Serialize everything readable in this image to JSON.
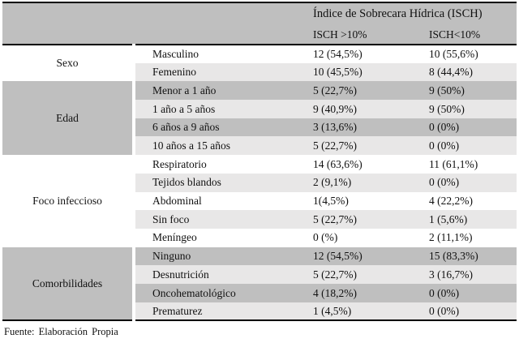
{
  "table": {
    "header": {
      "title": "Índice de Sobrecara Hídrica (ISCH)",
      "col_high": "ISCH >10%",
      "col_low": "ISCH<10%"
    },
    "groups": [
      {
        "label": "Sexo",
        "rows": [
          {
            "label": "Masculino",
            "v1": "12 (54,5%)",
            "v2": "10 (55,6%)"
          },
          {
            "label": "Femenino",
            "v1": "10 (45,5%)",
            "v2": "8 (44,4%)"
          }
        ]
      },
      {
        "label": "Edad",
        "rows": [
          {
            "label": "Menor a 1 año",
            "v1": "5 (22,7%)",
            "v2": "9 (50%)"
          },
          {
            "label": "1 año a 5 años",
            "v1": "9 (40,9%)",
            "v2": "9 (50%)"
          },
          {
            "label": "6 años a 9 años",
            "v1": "3 (13,6%)",
            "v2": "0 (0%)"
          },
          {
            "label": "10 años a 15 años",
            "v1": "5 (22,7%)",
            "v2": "0 (0%)"
          }
        ]
      },
      {
        "label": "Foco infeccioso",
        "rows": [
          {
            "label": "Respiratorio",
            "v1": "14 (63,6%)",
            "v2": "11 (61,1%)"
          },
          {
            "label": "Tejidos blandos",
            "v1": "2 (9,1%)",
            "v2": "0 (0%)"
          },
          {
            "label": "Abdominal",
            "v1": "1(4,5%)",
            "v2": "4 (22,2%)"
          },
          {
            "label": "Sin foco",
            "v1": "5 (22,7%)",
            "v2": "1 (5,6%)"
          },
          {
            "label": "Meníngeo",
            "v1": "0 (%)",
            "v2": "2 (11,1%)"
          }
        ]
      },
      {
        "label": "Comorbilidades",
        "rows": [
          {
            "label": "Ninguno",
            "v1": "12 (54,5%)",
            "v2": "15 (83,3%)"
          },
          {
            "label": "Desnutrición",
            "v1": "5 (22,7%)",
            "v2": "3 (16,7%)"
          },
          {
            "label": "Oncohematológico",
            "v1": "4 (18,2%)",
            "v2": "0 (0%)"
          },
          {
            "label": "Prematurez",
            "v1": "1 (4,5%)",
            "v2": "0 (0%)"
          }
        ]
      }
    ],
    "footer": "Fuente: Elaboración Propia"
  },
  "colors": {
    "header_and_dark_rows": "#bfbfbf",
    "light_rows": "#e8e7e7",
    "border": "#000000",
    "text": "#111111"
  }
}
